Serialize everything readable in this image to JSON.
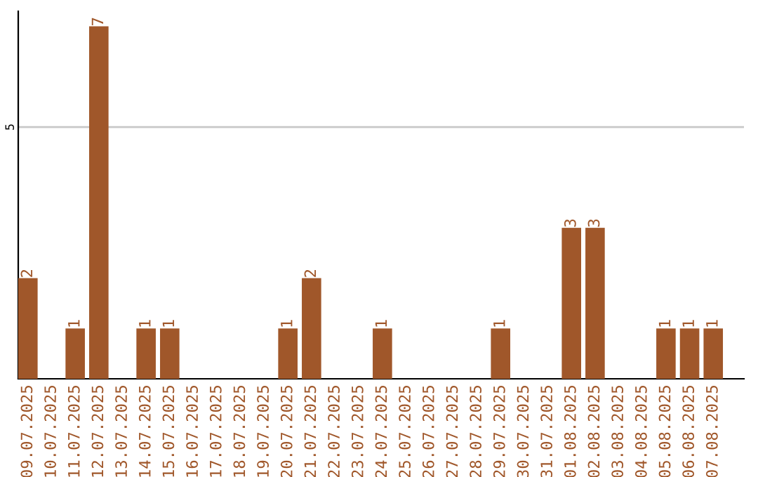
{
  "chart_data": {
    "type": "bar",
    "categories": [
      "09.07.2025",
      "10.07.2025",
      "11.07.2025",
      "12.07.2025",
      "13.07.2025",
      "14.07.2025",
      "15.07.2025",
      "16.07.2025",
      "17.07.2025",
      "18.07.2025",
      "19.07.2025",
      "20.07.2025",
      "21.07.2025",
      "22.07.2025",
      "23.07.2025",
      "24.07.2025",
      "25.07.2025",
      "26.07.2025",
      "27.07.2025",
      "28.07.2025",
      "29.07.2025",
      "30.07.2025",
      "31.07.2025",
      "01.08.2025",
      "02.08.2025",
      "03.08.2025",
      "04.08.2025",
      "05.08.2025",
      "06.08.2025",
      "07.08.2025"
    ],
    "values": [
      2,
      0,
      1,
      7,
      0,
      1,
      1,
      0,
      0,
      0,
      0,
      1,
      2,
      0,
      0,
      1,
      0,
      0,
      0,
      0,
      1,
      0,
      0,
      3,
      3,
      0,
      0,
      1,
      1,
      1
    ],
    "value_labels": [
      "2",
      null,
      "1",
      "7",
      null,
      "1",
      "1",
      null,
      null,
      null,
      null,
      "1",
      "2",
      null,
      null,
      "1",
      null,
      null,
      null,
      null,
      "1",
      null,
      null,
      "3",
      "3",
      null,
      null,
      "1",
      "1",
      "1"
    ],
    "color": "#a0572a",
    "ylim": [
      0,
      7.3
    ],
    "yticks": [
      5
    ],
    "grid": "y"
  }
}
